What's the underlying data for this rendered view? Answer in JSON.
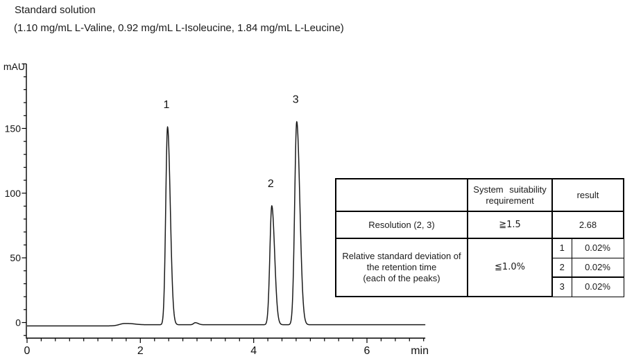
{
  "header": {
    "title": "Standard solution",
    "subtitle": "(1.10 mg/mL L-Valine, 0.92 mg/mL L-Isoleucine, 1.84 mg/mL L-Leucine)"
  },
  "chart_data": {
    "type": "line",
    "title": "Standard solution chromatogram",
    "xlabel": "min",
    "ylabel": "mAU",
    "xlim": [
      0,
      7.03
    ],
    "ylim": [
      -12,
      200
    ],
    "grid": false,
    "x_major_ticks": [
      0,
      2,
      4,
      6
    ],
    "x_minor_step": 0.25,
    "y_labeled_ticks": [
      0,
      50,
      100,
      150
    ],
    "y_major_ticks": [
      0,
      50,
      100,
      150,
      200
    ],
    "y_minor_step": 10,
    "baseline_mau": -2.6,
    "baseline_step": {
      "t": 1.82,
      "delta": 0.9
    },
    "peaks": [
      {
        "label": "",
        "t": 1.72,
        "height_mau": 1.8,
        "sigma_left": 0.09,
        "sigma_right": 0.13
      },
      {
        "label": "1",
        "t": 2.48,
        "height_mau": 153,
        "sigma_left": 0.032,
        "sigma_right": 0.048
      },
      {
        "label": "",
        "t": 2.97,
        "height_mau": 1.6,
        "sigma_left": 0.03,
        "sigma_right": 0.05
      },
      {
        "label": "2",
        "t": 4.32,
        "height_mau": 92,
        "sigma_left": 0.034,
        "sigma_right": 0.05
      },
      {
        "label": "3",
        "t": 4.76,
        "height_mau": 157,
        "sigma_left": 0.036,
        "sigma_right": 0.055
      }
    ],
    "peak_retention_min": [
      2.48,
      4.32,
      4.76
    ]
  },
  "table": {
    "header": {
      "criteria": "",
      "requirement_line1": "System suitability",
      "requirement_line2": "requirement",
      "result": "result"
    },
    "resolution_row": {
      "label": "Resolution (2, 3)",
      "requirement": "≧1.5",
      "result": "2.68"
    },
    "rsd_row": {
      "label_line1": "Relative standard deviation of",
      "label_line2": "the retention time",
      "label_line3": "(each of the peaks)",
      "requirement": "≦1.0%",
      "results": [
        {
          "peak": "1",
          "value": "0.02%"
        },
        {
          "peak": "2",
          "value": "0.02%"
        },
        {
          "peak": "3",
          "value": "0.02%"
        }
      ]
    }
  },
  "colors": {
    "trace": "#1a1a1a",
    "axis": "#000000",
    "background": "#ffffff"
  }
}
